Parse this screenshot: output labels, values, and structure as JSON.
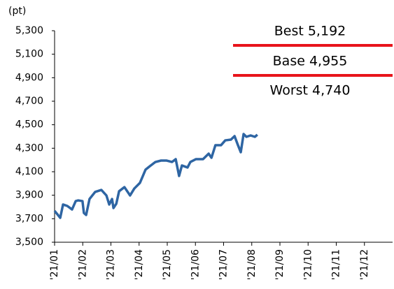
{
  "chart_data": {
    "type": "line",
    "y_unit_label": "(pt)",
    "x": [
      0,
      0.2,
      0.3,
      0.45,
      0.62,
      0.75,
      0.84,
      0.99,
      1.04,
      1.12,
      1.24,
      1.44,
      1.66,
      1.84,
      1.94,
      2.04,
      2.09,
      2.19,
      2.29,
      2.48,
      2.68,
      2.83,
      3.03,
      3.23,
      3.38,
      3.58,
      3.78,
      3.98,
      4.17,
      4.3,
      4.42,
      4.52,
      4.72,
      4.82,
      5.02,
      5.27,
      5.47,
      5.57,
      5.71,
      5.91,
      6.06,
      6.26,
      6.39,
      6.51,
      6.61,
      6.71,
      6.81,
      6.96,
      7.11,
      7.2
    ],
    "series": [
      {
        "color": "#2e65a3",
        "values": [
          3767,
          3708,
          3821,
          3809,
          3779,
          3850,
          3856,
          3850,
          3749,
          3732,
          3868,
          3928,
          3945,
          3898,
          3821,
          3868,
          3791,
          3827,
          3934,
          3969,
          3898,
          3957,
          4005,
          4118,
          4147,
          4183,
          4195,
          4195,
          4183,
          4207,
          4064,
          4153,
          4136,
          4183,
          4207,
          4207,
          4254,
          4219,
          4326,
          4326,
          4367,
          4373,
          4403,
          4326,
          4266,
          4421,
          4397,
          4409,
          4397,
          4415
        ]
      }
    ],
    "xlim": [
      0,
      12
    ],
    "xticks": [
      {
        "value": 0,
        "label": "'21/01"
      },
      {
        "value": 1,
        "label": "'21/02"
      },
      {
        "value": 2,
        "label": "'21/03"
      },
      {
        "value": 3,
        "label": "'21/04"
      },
      {
        "value": 4,
        "label": "'21/05"
      },
      {
        "value": 5,
        "label": "'21/06"
      },
      {
        "value": 6,
        "label": "'21/07"
      },
      {
        "value": 7,
        "label": "'21/08"
      },
      {
        "value": 8,
        "label": "'21/09"
      },
      {
        "value": 9,
        "label": "'21/10"
      },
      {
        "value": 10,
        "label": "'21/11"
      },
      {
        "value": 11,
        "label": "'21/12"
      }
    ],
    "ylim": [
      3500,
      5300
    ],
    "yticks": [
      {
        "value": 3500,
        "label": "3,500"
      },
      {
        "value": 3700,
        "label": "3,700"
      },
      {
        "value": 3900,
        "label": "3,900"
      },
      {
        "value": 4100,
        "label": "4,100"
      },
      {
        "value": 4300,
        "label": "4,300"
      },
      {
        "value": 4500,
        "label": "4,500"
      },
      {
        "value": 4700,
        "label": "4,700"
      },
      {
        "value": 4900,
        "label": "4,900"
      },
      {
        "value": 5100,
        "label": "5,100"
      },
      {
        "value": 5300,
        "label": "5,300"
      }
    ],
    "grid": false,
    "annotations": [
      "Best 5,192",
      "Base 4,955",
      "Worst 4,740"
    ]
  }
}
